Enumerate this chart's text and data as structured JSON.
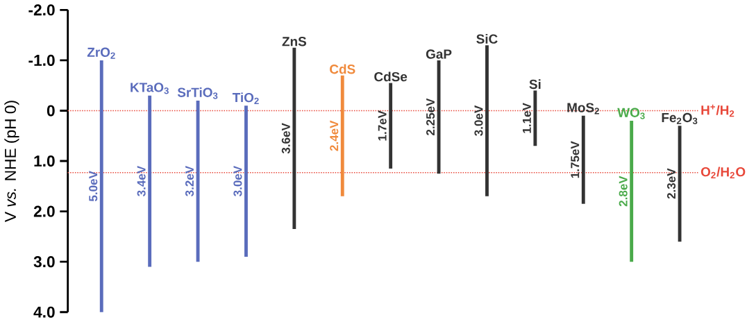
{
  "chart_data": {
    "type": "bar",
    "ylabel": "V *vs.* NHE (pH 0)",
    "categories": [
      "ZrO$_{2}$",
      "KTaO$_{3}$",
      "SrTiO$_{3}$",
      "TiO$_{2}$",
      "ZnS",
      "CdS",
      "CdSe",
      "GaP",
      "SiC",
      "Si",
      "MoS$_{2}$",
      "WO$_{3}$",
      "Fe$_{2}$O$_{3}$"
    ],
    "base": [
      -1.0,
      -0.3,
      -0.2,
      -0.1,
      -1.25,
      -0.7,
      -0.55,
      -1.0,
      -1.3,
      -0.4,
      0.1,
      0.2,
      0.3
    ],
    "values": [
      5.0,
      3.4,
      3.2,
      3.0,
      3.6,
      2.4,
      1.7,
      2.25,
      3.0,
      1.1,
      1.75,
      2.8,
      2.3
    ],
    "value_labels": [
      "5.0eV",
      "3.4eV",
      "3.2eV",
      "3.0eV",
      "3.6eV",
      "2.4eV",
      "1.7eV",
      "2.25eV",
      "3.0eV",
      "1.1eV",
      "1.75eV",
      "2.8eV",
      "2.3eV"
    ],
    "colors": [
      "#5a6cbc",
      "#5a6cbc",
      "#5a6cbc",
      "#5a6cbc",
      "#333333",
      "#f08a3c",
      "#333333",
      "#333333",
      "#333333",
      "#333333",
      "#333333",
      "#4aaa4a",
      "#333333"
    ],
    "ylim": [
      4.0,
      -2.0
    ],
    "yticks": [
      {
        "value": -2.0,
        "label": "-2.0"
      },
      {
        "value": -1.0,
        "label": "-1.0"
      },
      {
        "value": 0,
        "label": "0"
      },
      {
        "value": 1.0,
        "label": "1.0"
      },
      {
        "value": 2.0,
        "label": "2.0"
      },
      {
        "value": 3.0,
        "label": "3.0"
      },
      {
        "value": 4.0,
        "label": "4.0"
      }
    ],
    "tick_labels": "y",
    "ref_lines": [
      {
        "axis": "y",
        "value": 0,
        "label": "H$^{+}$/H$_{2}$",
        "color": "#e8483a",
        "line_style": "dotted"
      },
      {
        "axis": "y",
        "value": 1.23,
        "label": "O$_{2}$/H$_{2}$O",
        "color": "#e8483a",
        "line_style": "dotted"
      }
    ]
  }
}
